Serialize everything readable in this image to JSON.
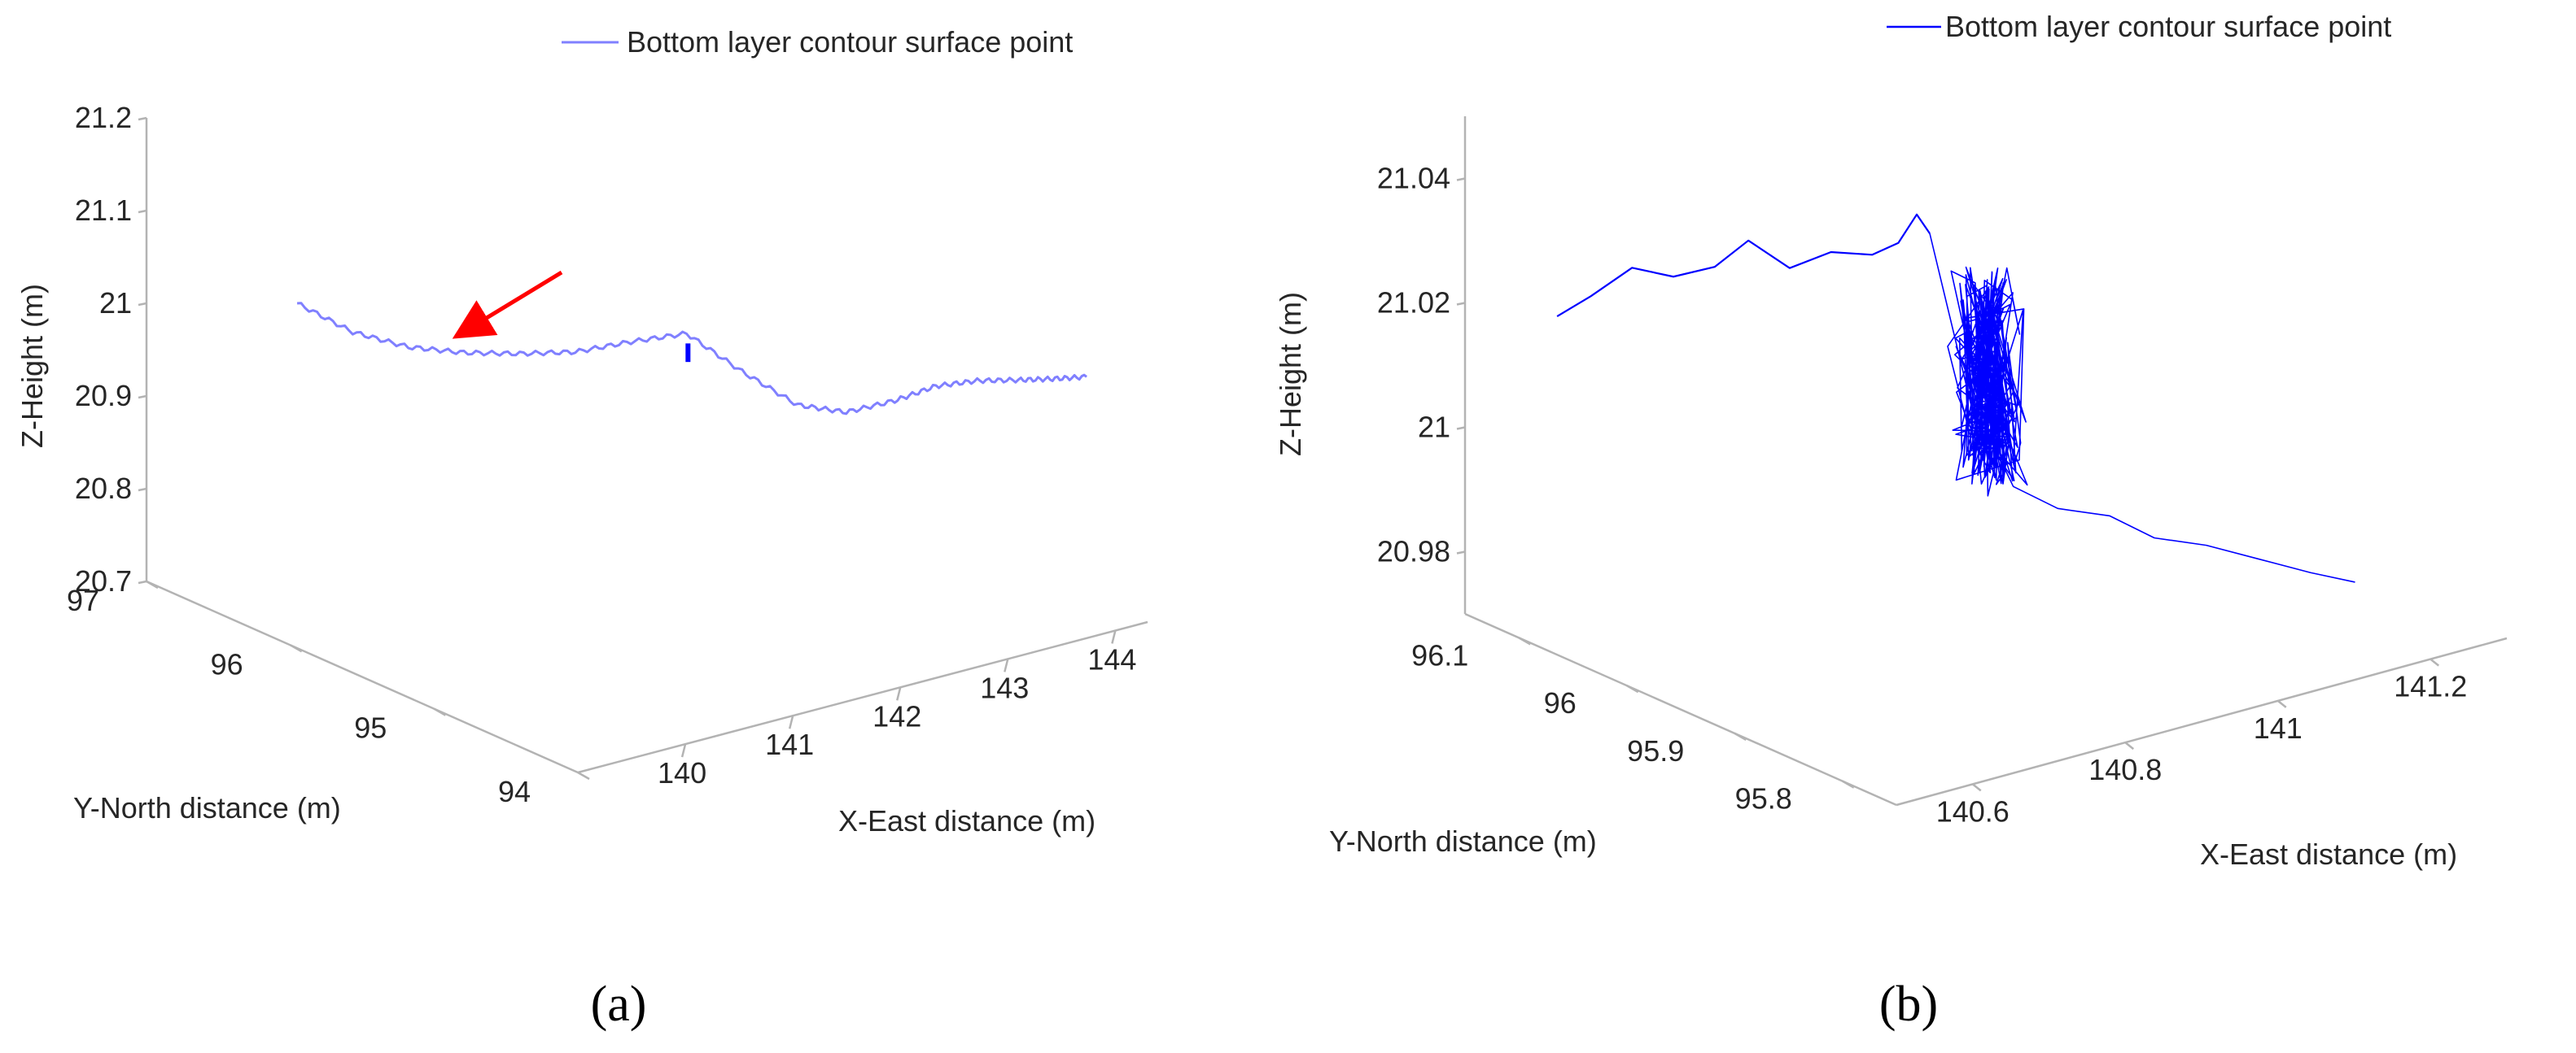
{
  "panels": {
    "a": {
      "label": "(a)"
    },
    "b": {
      "label": "(b)"
    }
  },
  "chart_data": [
    {
      "type": "line",
      "panel": "(a)",
      "title": "",
      "legend": {
        "entries": [
          "Bottom layer contour surface point"
        ],
        "placement": "top-center"
      },
      "xlabel": "X-East distance (m)",
      "ylabel": "Y-North distance (m)",
      "zlabel": "Z-Height (m)",
      "xlim": [
        139,
        144.3
      ],
      "ylim": [
        94,
        97
      ],
      "zlim": [
        20.7,
        21.2
      ],
      "x_ticks": [
        "140",
        "141",
        "142",
        "143",
        "144"
      ],
      "y_ticks": [
        "94",
        "95",
        "96",
        "97"
      ],
      "z_ticks": [
        "20.7",
        "20.8",
        "20.9",
        "21",
        "21.1",
        "21.2"
      ],
      "annotation": {
        "type": "arrow",
        "color": "#ff0000",
        "target": "transition between two layers"
      },
      "highlight": {
        "color": "#0000ff",
        "x": 141.75,
        "z_range": [
          20.97,
          20.99
        ]
      },
      "series": [
        {
          "color": "#8080ff",
          "x": [
            140.0,
            140.25,
            140.5,
            140.75,
            141.0,
            141.25,
            141.5,
            141.75,
            142.0,
            142.25,
            142.5,
            142.75,
            143.0,
            143.25,
            143.5,
            143.75,
            144.0
          ],
          "y": [
            96.7,
            96.5,
            96.3,
            96.1,
            95.9,
            95.7,
            95.5,
            95.3,
            95.1,
            94.9,
            94.75,
            94.6,
            94.5,
            94.4,
            94.3,
            94.25,
            94.2
          ],
          "z": [
            20.99,
            20.965,
            20.955,
            20.955,
            20.96,
            20.968,
            20.985,
            21.0,
            20.965,
            20.935,
            20.93,
            20.945,
            20.96,
            20.965,
            20.965,
            20.962,
            20.96
          ]
        }
      ]
    },
    {
      "type": "line",
      "panel": "(b)",
      "title": "",
      "legend": {
        "entries": [
          "Bottom layer contour surface point"
        ],
        "placement": "top-right"
      },
      "xlabel": "X-East distance (m)",
      "ylabel": "Y-North distance (m)",
      "zlabel": "Z-Height (m)",
      "xlim": [
        140.5,
        141.3
      ],
      "ylim": [
        95.75,
        96.15
      ],
      "zlim": [
        20.97,
        21.05
      ],
      "x_ticks": [
        "140.6",
        "140.8",
        "141",
        "141.2"
      ],
      "y_ticks": [
        "95.8",
        "95.9",
        "96",
        "96.1"
      ],
      "z_ticks": [
        "20.98",
        "21",
        "21.02",
        "21.04"
      ],
      "series": [
        {
          "color": "#0000ff",
          "path": [
            [
              140.55,
              96.1,
              21.02
            ],
            [
              140.58,
              96.09,
              21.023
            ],
            [
              140.62,
              96.08,
              21.027
            ],
            [
              140.66,
              96.07,
              21.025
            ],
            [
              140.7,
              96.06,
              21.026
            ],
            [
              140.73,
              96.05,
              21.03
            ],
            [
              140.77,
              96.04,
              21.025
            ],
            [
              140.81,
              96.03,
              21.027
            ],
            [
              140.85,
              96.02,
              21.026
            ],
            [
              140.87,
              96.01,
              21.028
            ],
            [
              140.88,
              96.0,
              21.033
            ],
            [
              140.89,
              95.995,
              21.03
            ]
          ],
          "cluster": {
            "x_center": 140.93,
            "y_center": 95.97,
            "z_range": [
              20.99,
              21.025
            ]
          },
          "tail": [
            [
              140.95,
              95.96,
              20.99
            ],
            [
              140.98,
              95.94,
              20.987
            ],
            [
              141.02,
              95.92,
              20.986
            ],
            [
              141.05,
              95.9,
              20.983
            ],
            [
              141.09,
              95.88,
              20.982
            ],
            [
              141.13,
              95.86,
              20.98
            ],
            [
              141.17,
              95.84,
              20.978
            ],
            [
              141.2,
              95.82,
              20.977
            ]
          ]
        }
      ]
    }
  ]
}
